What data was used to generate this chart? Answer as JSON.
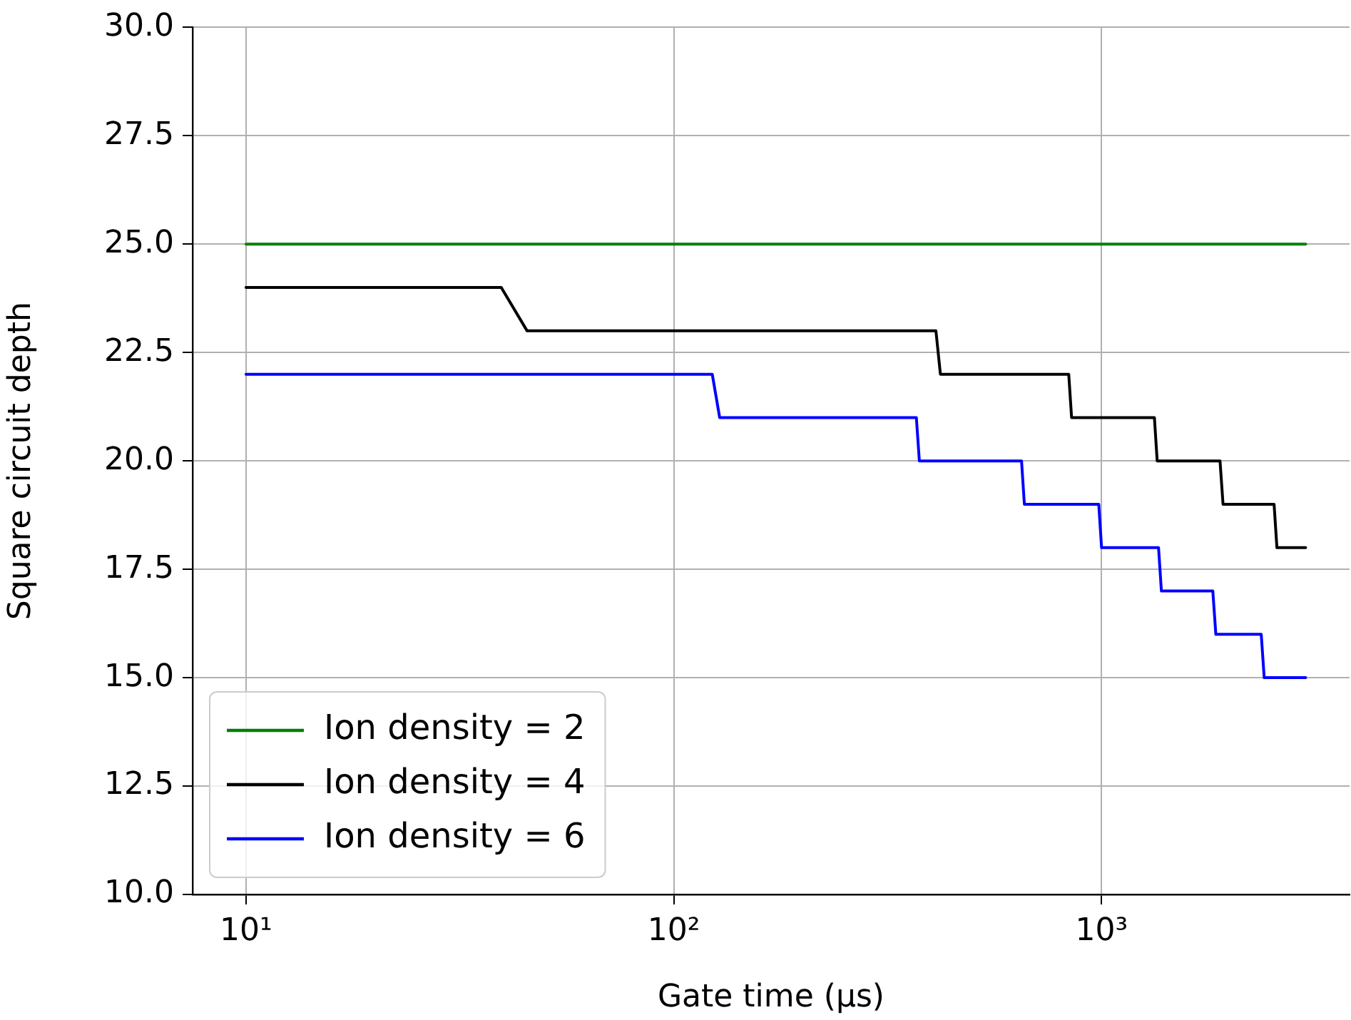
{
  "chart_data": {
    "type": "line",
    "xlabel": "Gate time (μs)",
    "ylabel": "Square circuit depth",
    "log": "x",
    "grid": true,
    "legend": "bottom left",
    "line_style": "solid",
    "marker": "none",
    "xlim": [
      7.5,
      3800
    ],
    "xticks": [
      {
        "value": 10,
        "label": "10¹"
      },
      {
        "value": 100,
        "label": "10²"
      },
      {
        "value": 1000,
        "label": "10³"
      }
    ],
    "ylim": [
      10,
      30
    ],
    "yticks": [
      {
        "value": 10,
        "label": "10.0"
      },
      {
        "value": 12.5,
        "label": "12.5"
      },
      {
        "value": 15,
        "label": "15.0"
      },
      {
        "value": 17.5,
        "label": "17.5"
      },
      {
        "value": 20,
        "label": "20.0"
      },
      {
        "value": 22.5,
        "label": "22.5"
      },
      {
        "value": 25,
        "label": "25.0"
      },
      {
        "value": 27.5,
        "label": "27.5"
      },
      {
        "value": 30,
        "label": "30.0"
      }
    ],
    "series": [
      {
        "name": "Ion density = 2",
        "color": "#008000",
        "x": [
          10,
          3000
        ],
        "values": [
          25,
          25
        ]
      },
      {
        "name": "Ion density = 4",
        "color": "#000000",
        "x": [
          10,
          39.5,
          45.4,
          410,
          420,
          838,
          851,
          1329,
          1349,
          1892,
          1923,
          2531,
          2570,
          3000
        ],
        "values": [
          24,
          24,
          23,
          23,
          22,
          22,
          21,
          21,
          20,
          20,
          19,
          19,
          18,
          18
        ]
      },
      {
        "name": "Ion density = 6",
        "color": "#0000ff",
        "x": [
          10,
          123,
          128,
          369,
          375,
          650,
          660,
          985,
          1000,
          1359,
          1380,
          1820,
          1850,
          2362,
          2400,
          3000
        ],
        "values": [
          22,
          22,
          21,
          21,
          20,
          20,
          19,
          19,
          18,
          18,
          17,
          17,
          16,
          16,
          15,
          15
        ]
      }
    ]
  }
}
